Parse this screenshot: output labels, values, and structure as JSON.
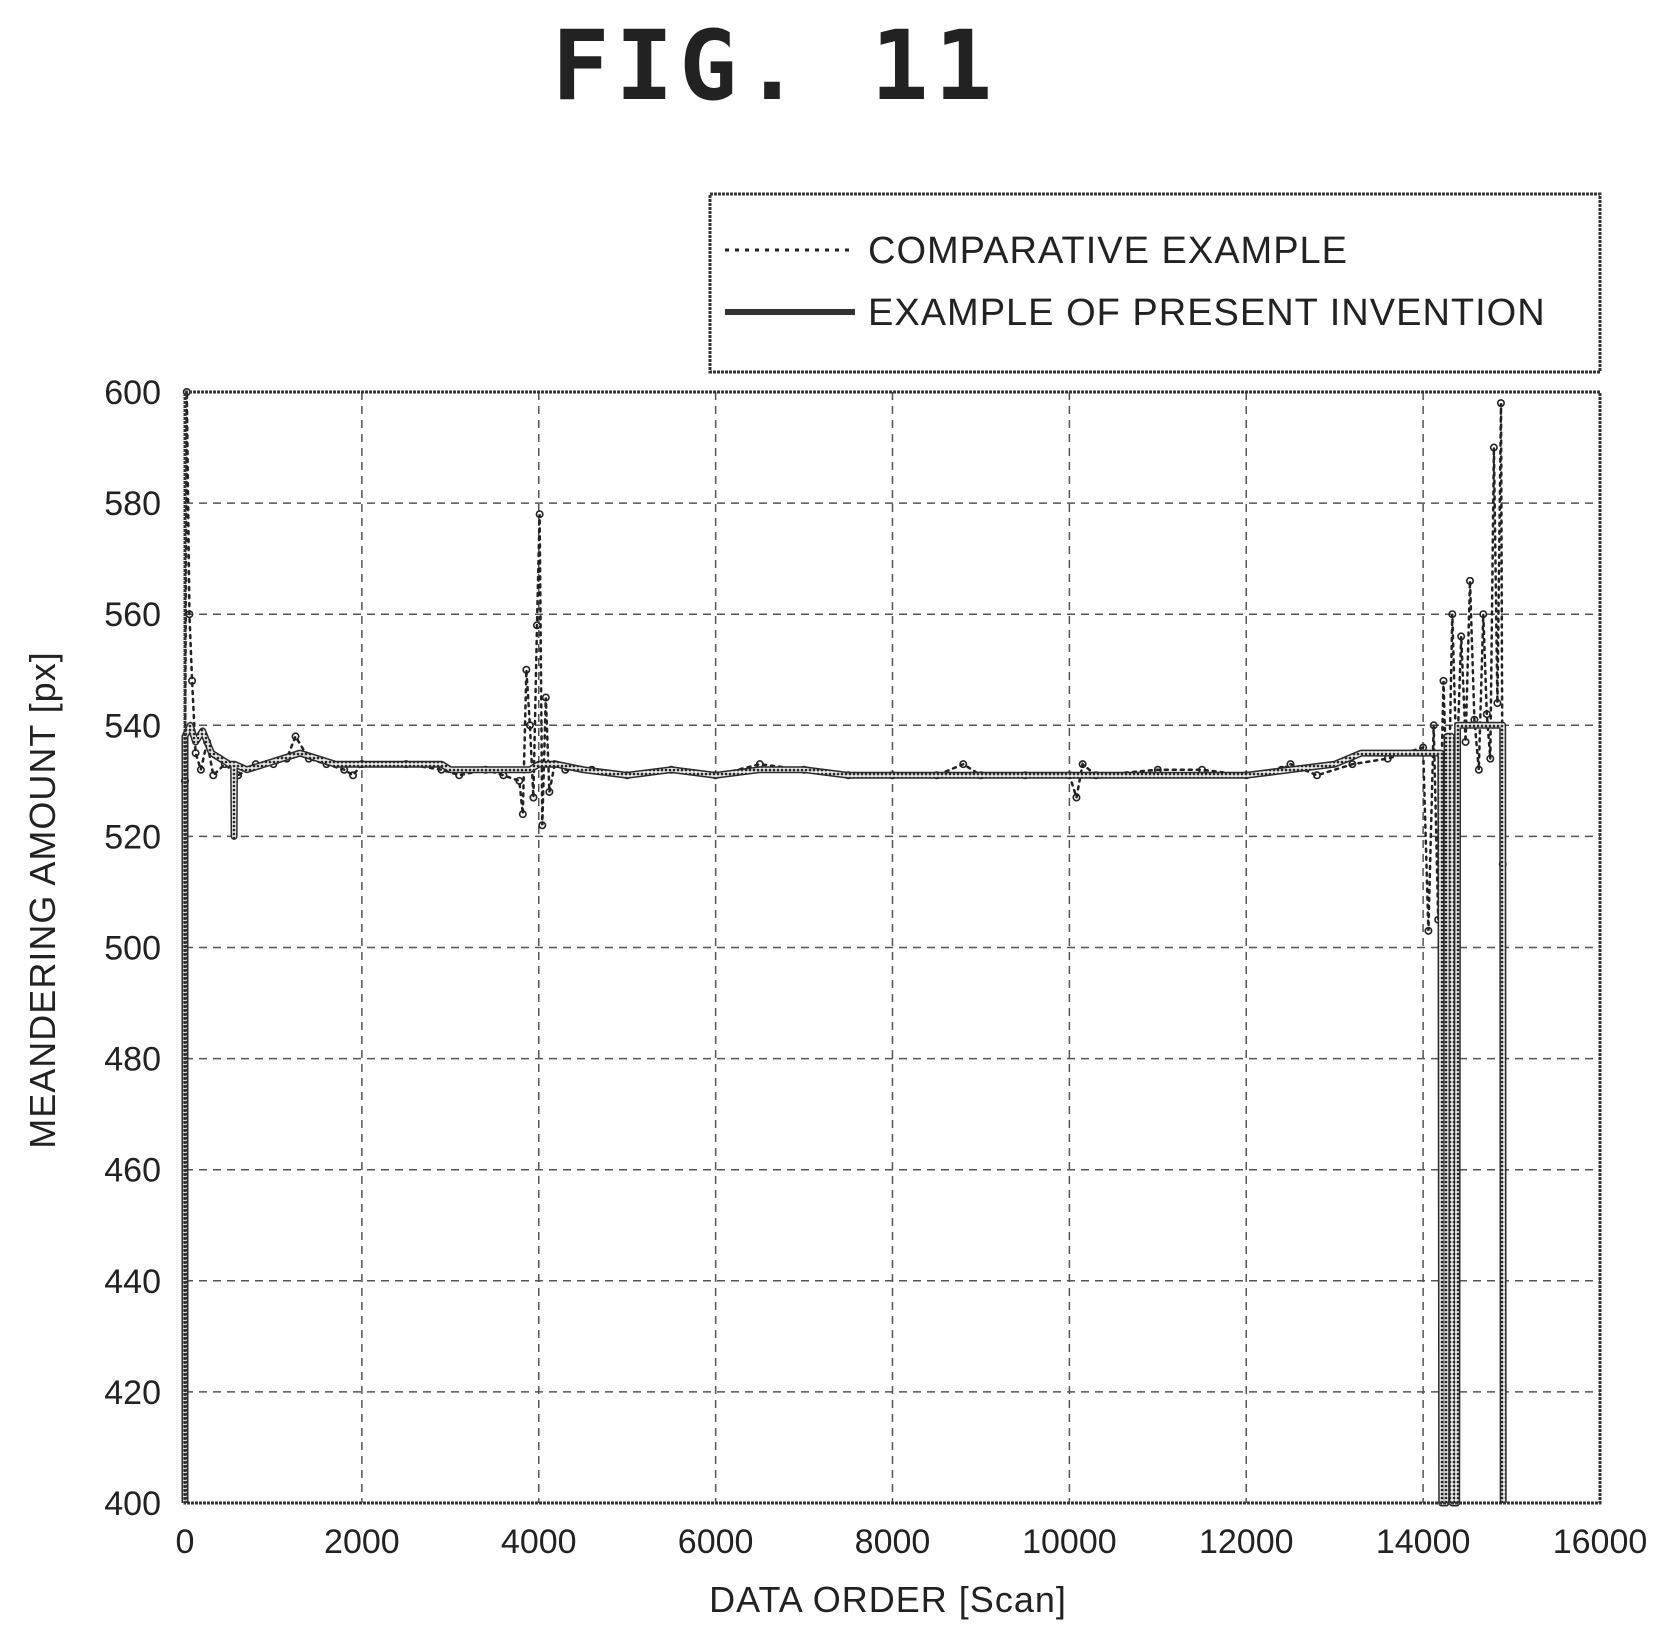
{
  "figure": {
    "title": "FIG. 11"
  },
  "chart_data": {
    "type": "line",
    "xlabel": "DATA ORDER [Scan]",
    "ylabel": "MEANDERING AMOUNT [px]",
    "xlim": [
      0,
      16000
    ],
    "ylim": [
      400,
      600
    ],
    "x_ticks": [
      0,
      2000,
      4000,
      6000,
      8000,
      10000,
      12000,
      14000,
      16000
    ],
    "y_ticks": [
      400,
      420,
      440,
      460,
      480,
      500,
      520,
      540,
      560,
      580,
      600
    ],
    "grid": true,
    "legend_position": "top-right, above plot",
    "series": [
      {
        "name": "COMPARATIVE EXAMPLE",
        "style": "dotted",
        "points": [
          [
            0,
            530
          ],
          [
            20,
            600
          ],
          [
            50,
            560
          ],
          [
            80,
            548
          ],
          [
            120,
            535
          ],
          [
            180,
            532
          ],
          [
            250,
            537
          ],
          [
            320,
            531
          ],
          [
            450,
            533
          ],
          [
            600,
            531
          ],
          [
            800,
            533
          ],
          [
            1000,
            533
          ],
          [
            1150,
            534
          ],
          [
            1250,
            538
          ],
          [
            1400,
            534
          ],
          [
            1600,
            533
          ],
          [
            1800,
            532
          ],
          [
            1900,
            531
          ],
          [
            2000,
            533
          ],
          [
            2500,
            533
          ],
          [
            2900,
            532
          ],
          [
            3100,
            531
          ],
          [
            3400,
            532
          ],
          [
            3600,
            531
          ],
          [
            3780,
            530
          ],
          [
            3820,
            524
          ],
          [
            3860,
            550
          ],
          [
            3900,
            540
          ],
          [
            3940,
            527
          ],
          [
            3980,
            558
          ],
          [
            4010,
            578
          ],
          [
            4040,
            522
          ],
          [
            4080,
            545
          ],
          [
            4120,
            528
          ],
          [
            4180,
            533
          ],
          [
            4300,
            532
          ],
          [
            4600,
            532
          ],
          [
            5000,
            531
          ],
          [
            5500,
            532
          ],
          [
            6000,
            531
          ],
          [
            6500,
            533
          ],
          [
            7000,
            532
          ],
          [
            7500,
            531
          ],
          [
            8000,
            531
          ],
          [
            8500,
            531
          ],
          [
            8800,
            533
          ],
          [
            9000,
            531
          ],
          [
            9500,
            531
          ],
          [
            10000,
            531
          ],
          [
            10080,
            527
          ],
          [
            10150,
            533
          ],
          [
            10300,
            531
          ],
          [
            11000,
            532
          ],
          [
            11500,
            532
          ],
          [
            12000,
            531
          ],
          [
            12400,
            532
          ],
          [
            12500,
            533
          ],
          [
            12800,
            531
          ],
          [
            13200,
            533
          ],
          [
            13600,
            534
          ],
          [
            14000,
            536
          ],
          [
            14060,
            503
          ],
          [
            14120,
            540
          ],
          [
            14170,
            505
          ],
          [
            14230,
            548
          ],
          [
            14280,
            520
          ],
          [
            14330,
            560
          ],
          [
            14380,
            532
          ],
          [
            14430,
            556
          ],
          [
            14480,
            537
          ],
          [
            14530,
            566
          ],
          [
            14580,
            541
          ],
          [
            14630,
            532
          ],
          [
            14680,
            560
          ],
          [
            14720,
            542
          ],
          [
            14760,
            534
          ],
          [
            14800,
            590
          ],
          [
            14840,
            544
          ],
          [
            14880,
            598
          ],
          [
            14900,
            515
          ]
        ]
      },
      {
        "name": "EXAMPLE OF PRESENT INVENTION",
        "style": "solid",
        "points": [
          [
            0,
            400
          ],
          [
            0,
            538
          ],
          [
            60,
            540
          ],
          [
            120,
            537
          ],
          [
            200,
            539
          ],
          [
            300,
            535
          ],
          [
            400,
            534
          ],
          [
            500,
            533
          ],
          [
            550,
            533
          ],
          [
            555,
            520
          ],
          [
            560,
            533
          ],
          [
            700,
            532
          ],
          [
            900,
            533
          ],
          [
            1100,
            534
          ],
          [
            1300,
            535
          ],
          [
            1500,
            534
          ],
          [
            1700,
            533
          ],
          [
            2000,
            533
          ],
          [
            2500,
            533
          ],
          [
            2900,
            533
          ],
          [
            3000,
            532
          ],
          [
            3300,
            532
          ],
          [
            3600,
            532
          ],
          [
            3900,
            532
          ],
          [
            4000,
            533
          ],
          [
            4200,
            533
          ],
          [
            4500,
            532
          ],
          [
            5000,
            531
          ],
          [
            5500,
            532
          ],
          [
            6000,
            531
          ],
          [
            6500,
            532
          ],
          [
            7000,
            532
          ],
          [
            7500,
            531
          ],
          [
            8000,
            531
          ],
          [
            9000,
            531
          ],
          [
            10000,
            531
          ],
          [
            11000,
            531
          ],
          [
            12000,
            531
          ],
          [
            12500,
            532
          ],
          [
            13000,
            533
          ],
          [
            13300,
            535
          ],
          [
            13600,
            535
          ],
          [
            14000,
            535
          ],
          [
            14200,
            535
          ],
          [
            14210,
            400
          ],
          [
            14260,
            400
          ],
          [
            14270,
            538
          ],
          [
            14320,
            538
          ],
          [
            14330,
            400
          ],
          [
            14380,
            400
          ],
          [
            14390,
            540
          ],
          [
            14800,
            540
          ],
          [
            14900,
            540
          ],
          [
            14905,
            400
          ]
        ]
      }
    ]
  }
}
